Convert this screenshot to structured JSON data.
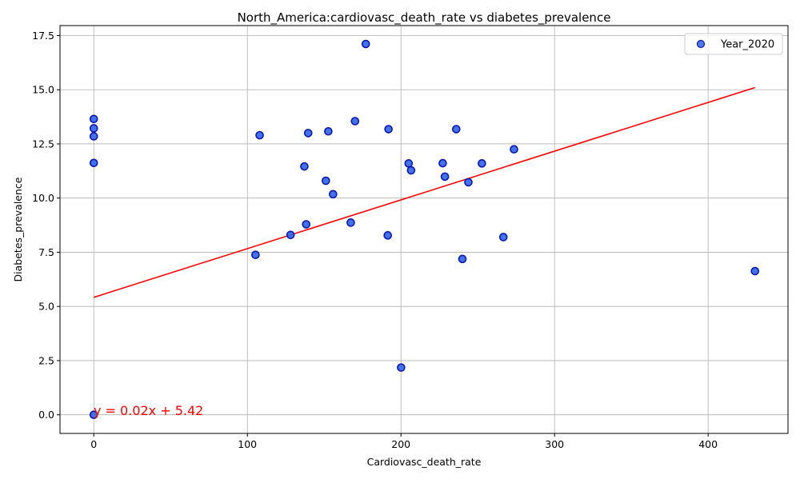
{
  "chart_data": {
    "type": "scatter",
    "title": "North_America:cardiovasc_death_rate vs diabetes_prevalence",
    "xlabel": "Cardiovasc_death_rate",
    "ylabel": "Diabetes_prevalence",
    "xlim": [
      -22,
      452
    ],
    "ylim": [
      -0.86,
      17.96
    ],
    "xticks": [
      0,
      100,
      200,
      300,
      400
    ],
    "xtick_labels": [
      "0",
      "100",
      "200",
      "300",
      "400"
    ],
    "yticks": [
      0,
      2.5,
      5,
      7.5,
      10,
      12.5,
      15,
      17.5
    ],
    "ytick_labels": [
      "0.0",
      "2.5",
      "5.0",
      "7.5",
      "10.0",
      "12.5",
      "15.0",
      "17.5"
    ],
    "grid": true,
    "legend_position": "top-right",
    "series": [
      {
        "name": "Year_2020",
        "color": "#2e64e6",
        "edge_color": "#0b16b8",
        "points": [
          {
            "x": 0,
            "y": 13.65
          },
          {
            "x": 0,
            "y": 13.22
          },
          {
            "x": 0,
            "y": 12.85
          },
          {
            "x": 0,
            "y": 11.62
          },
          {
            "x": 0,
            "y": 0.0
          },
          {
            "x": 105.3,
            "y": 7.38
          },
          {
            "x": 108.0,
            "y": 12.9
          },
          {
            "x": 128.1,
            "y": 8.3
          },
          {
            "x": 137.1,
            "y": 11.46
          },
          {
            "x": 138.3,
            "y": 8.79
          },
          {
            "x": 139.6,
            "y": 13.0
          },
          {
            "x": 151.1,
            "y": 10.8
          },
          {
            "x": 152.7,
            "y": 13.08
          },
          {
            "x": 155.8,
            "y": 10.18
          },
          {
            "x": 167.3,
            "y": 8.87
          },
          {
            "x": 170.1,
            "y": 13.55
          },
          {
            "x": 177.1,
            "y": 17.11
          },
          {
            "x": 191.4,
            "y": 8.28
          },
          {
            "x": 191.9,
            "y": 13.18
          },
          {
            "x": 200.1,
            "y": 2.18
          },
          {
            "x": 205.0,
            "y": 11.6
          },
          {
            "x": 206.6,
            "y": 11.28
          },
          {
            "x": 227.2,
            "y": 11.61
          },
          {
            "x": 228.6,
            "y": 10.99
          },
          {
            "x": 236.0,
            "y": 13.18
          },
          {
            "x": 240.0,
            "y": 7.19
          },
          {
            "x": 243.9,
            "y": 10.73
          },
          {
            "x": 252.7,
            "y": 11.6
          },
          {
            "x": 266.7,
            "y": 8.2
          },
          {
            "x": 273.6,
            "y": 12.25
          },
          {
            "x": 430.5,
            "y": 6.63
          }
        ]
      }
    ],
    "trendline": {
      "equation": "y = 0.02x + 5.42",
      "color": "#ff0000",
      "x_range": [
        0,
        430.5
      ],
      "y_range": [
        5.42,
        15.1
      ]
    }
  }
}
